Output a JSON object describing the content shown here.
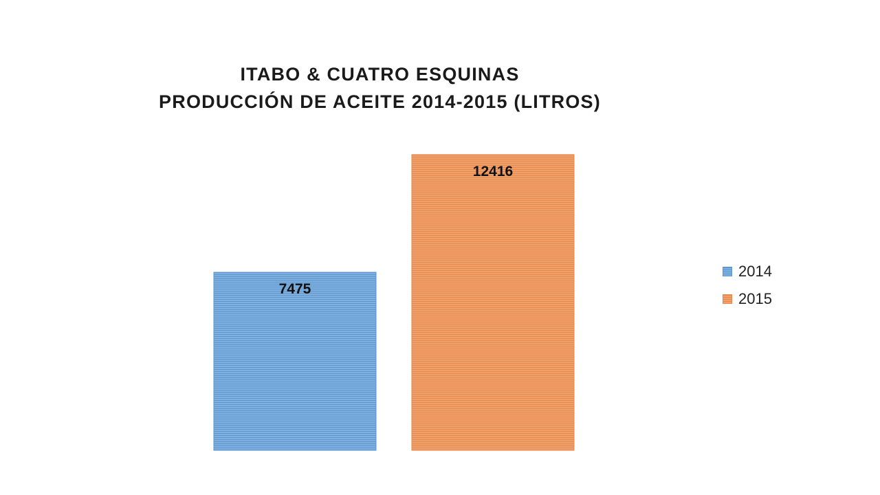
{
  "chart_data": {
    "type": "bar",
    "title": [
      "ITABO & CUATRO ESQUINAS",
      "PRODUCCIÓN DE ACEITE 2014-2015 (LITROS)"
    ],
    "series": [
      {
        "name": "2014",
        "values": [
          7475
        ],
        "color": "#7fb0df",
        "stripe_color": "#5b96cf"
      },
      {
        "name": "2015",
        "values": [
          12416
        ],
        "color": "#f0a06a",
        "stripe_color": "#e58a4c"
      }
    ],
    "ylim": [
      0,
      14000
    ],
    "data_labels": true,
    "legend": "right",
    "grid": false,
    "axes_visible": false
  }
}
